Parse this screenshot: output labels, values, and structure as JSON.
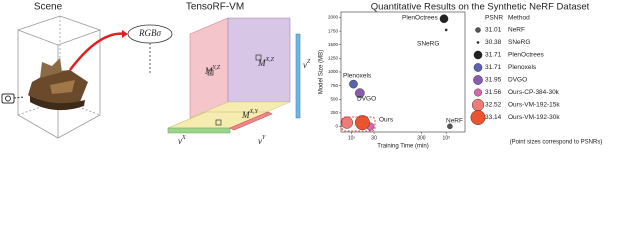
{
  "diagram": {
    "scene_title": "Scene",
    "model_title": "TensoRF-VM",
    "output": {
      "base": "RGB",
      "sub": "σ"
    },
    "planes": [
      {
        "base": "M",
        "sup": "Y,Z"
      },
      {
        "base": "M",
        "sup": "X,Z"
      },
      {
        "base": "M",
        "sup": "X,Y"
      }
    ],
    "vectors": [
      {
        "base": "v",
        "sup": "X"
      },
      {
        "base": "v",
        "sup": "Y"
      },
      {
        "base": "v",
        "sup": "Z"
      }
    ]
  },
  "chart_data": {
    "type": "scatter",
    "title": "Quantitative Results on the Synthetic NeRF Dataset",
    "x_label": "Training Time (min)",
    "y_label": "Model Size (MB)",
    "log_x": true,
    "xlim": [
      6,
      2500
    ],
    "xticks": [
      {
        "value": 10,
        "label": "10¹"
      },
      30,
      300,
      {
        "value": 1000,
        "label": "10³"
      }
    ],
    "ylim": [
      -100,
      2100
    ],
    "yticks": [
      0,
      250,
      500,
      750,
      1000,
      1250,
      1500,
      1750,
      2000
    ],
    "legend_header": [
      "PSNR",
      "Method"
    ],
    "series": [
      {
        "name": "NeRF",
        "color": "#555555",
        "x": 1200,
        "y": 5,
        "psnr": 31.01
      },
      {
        "name": "SNeRG",
        "color": "#333333",
        "x": 1000,
        "y": 1771,
        "psnr": 30.38
      },
      {
        "name": "PlenOctrees",
        "color": "#222222",
        "x": 900,
        "y": 1976,
        "psnr": 31.71
      },
      {
        "name": "Plenoxels",
        "color": "#5b63b0",
        "x": 11,
        "y": 778,
        "psnr": 31.71
      },
      {
        "name": "DVGO",
        "color": "#8a5cb0",
        "x": 15,
        "y": 612,
        "psnr": 31.95
      },
      {
        "name": "Ours-CP-384-30k",
        "color": "#d966b0",
        "x": 25,
        "y": 0.3,
        "psnr": 31.56
      },
      {
        "name": "Ours-VM-192-15k",
        "color": "#f07a78",
        "x": 8,
        "y": 71.8,
        "psnr": 32.52
      },
      {
        "name": "Ours-VM-192-30k",
        "color": "#ea5530",
        "x": 17,
        "y": 71.8,
        "psnr": 33.14
      }
    ],
    "annotations": [
      "PlenOctrees",
      "SNeRG",
      "Plenoxels",
      "DVGO",
      "NeRF",
      "Ours"
    ],
    "note": "(Point sizes correspond to PSNRs)"
  }
}
